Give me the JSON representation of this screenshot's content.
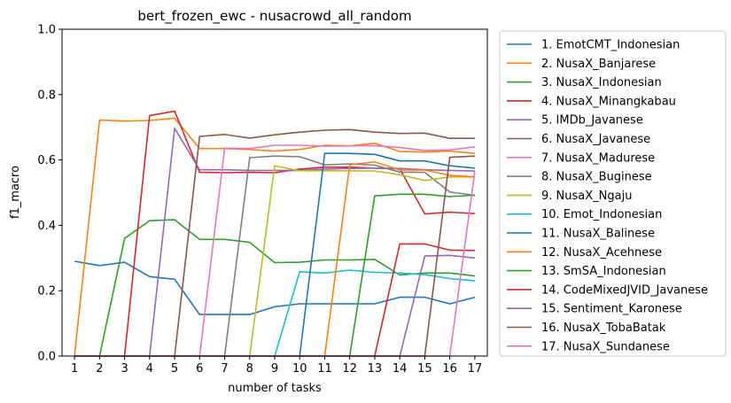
{
  "chart_data": {
    "type": "line",
    "title": "bert_frozen_ewc - nusacrowd_all_random",
    "xlabel": "number of tasks",
    "ylabel": "f1_macro",
    "ylim": [
      0.0,
      1.0
    ],
    "yticks": [
      "0.0",
      "0.2",
      "0.4",
      "0.6",
      "0.8",
      "1.0"
    ],
    "x": [
      1,
      2,
      3,
      4,
      5,
      6,
      7,
      8,
      9,
      10,
      11,
      12,
      13,
      14,
      15,
      16,
      17
    ],
    "grid": false,
    "legend_position": "outside-right",
    "series": [
      {
        "name": "1. EmotCMT_Indonesian",
        "color": "#1f77b4",
        "values": [
          0.29,
          0.277,
          0.287,
          0.243,
          0.235,
          0.127,
          0.127,
          0.127,
          0.151,
          0.16,
          0.16,
          0.16,
          0.16,
          0.18,
          0.18,
          0.16,
          0.18
        ]
      },
      {
        "name": "2. NusaX_Banjarese",
        "color": "#ff7f0e",
        "values": [
          0.0,
          0.722,
          0.719,
          0.721,
          0.728,
          0.635,
          0.635,
          0.632,
          0.627,
          0.632,
          0.645,
          0.643,
          0.651,
          0.626,
          0.624,
          0.627,
          0.62
        ]
      },
      {
        "name": "3. NusaX_Indonesian",
        "color": "#2ca02c",
        "values": [
          0.0,
          0.0,
          0.36,
          0.414,
          0.417,
          0.357,
          0.357,
          0.348,
          0.286,
          0.287,
          0.294,
          0.294,
          0.296,
          0.248,
          0.254,
          0.254,
          0.245
        ]
      },
      {
        "name": "4. NusaX_Minangkabau",
        "color": "#d62728",
        "values": [
          0.0,
          0.0,
          0.0,
          0.736,
          0.749,
          0.562,
          0.561,
          0.562,
          0.561,
          0.572,
          0.578,
          0.578,
          0.575,
          0.573,
          0.435,
          0.44,
          0.436
        ]
      },
      {
        "name": "5. IMDb_Javanese",
        "color": "#9467bd",
        "values": [
          0.0,
          0.0,
          0.0,
          0.0,
          0.697,
          0.57,
          0.57,
          0.568,
          0.568,
          0.568,
          0.572,
          0.574,
          0.575,
          0.574,
          0.57,
          0.568,
          0.566
        ]
      },
      {
        "name": "6. NusaX_Javanese",
        "color": "#8c564b",
        "values": [
          0.0,
          0.0,
          0.0,
          0.0,
          0.0,
          0.672,
          0.678,
          0.667,
          0.677,
          0.685,
          0.691,
          0.693,
          0.685,
          0.681,
          0.682,
          0.666,
          0.666
        ]
      },
      {
        "name": "7. NusaX_Madurese",
        "color": "#e377c2",
        "values": [
          0.0,
          0.0,
          0.0,
          0.0,
          0.0,
          0.0,
          0.636,
          0.635,
          0.645,
          0.645,
          0.642,
          0.643,
          0.644,
          0.638,
          0.629,
          0.631,
          0.64
        ]
      },
      {
        "name": "8. NusaX_Buginese",
        "color": "#7f7f7f",
        "values": [
          0.0,
          0.0,
          0.0,
          0.0,
          0.0,
          0.0,
          0.0,
          0.607,
          0.612,
          0.61,
          0.585,
          0.588,
          0.584,
          0.563,
          0.562,
          0.502,
          0.492
        ]
      },
      {
        "name": "9. NusaX_Ngaju",
        "color": "#bcbd22",
        "values": [
          0.0,
          0.0,
          0.0,
          0.0,
          0.0,
          0.0,
          0.0,
          0.0,
          0.582,
          0.567,
          0.567,
          0.567,
          0.566,
          0.555,
          0.537,
          0.548,
          0.548
        ]
      },
      {
        "name": "10. Emot_Indonesian",
        "color": "#17becf",
        "values": [
          0.0,
          0.0,
          0.0,
          0.0,
          0.0,
          0.0,
          0.0,
          0.0,
          0.0,
          0.258,
          0.254,
          0.263,
          0.256,
          0.254,
          0.249,
          0.237,
          0.23
        ]
      },
      {
        "name": "11. NusaX_Balinese",
        "color": "#1f77b4",
        "values": [
          0.0,
          0.0,
          0.0,
          0.0,
          0.0,
          0.0,
          0.0,
          0.0,
          0.0,
          0.0,
          0.62,
          0.62,
          0.617,
          0.597,
          0.597,
          0.582,
          0.575
        ]
      },
      {
        "name": "12. NusaX_Acehnese",
        "color": "#ff7f0e",
        "values": [
          0.0,
          0.0,
          0.0,
          0.0,
          0.0,
          0.0,
          0.0,
          0.0,
          0.0,
          0.0,
          0.0,
          0.585,
          0.594,
          0.569,
          0.569,
          0.553,
          0.548
        ]
      },
      {
        "name": "13. SmSA_Indonesian",
        "color": "#2ca02c",
        "values": [
          0.0,
          0.0,
          0.0,
          0.0,
          0.0,
          0.0,
          0.0,
          0.0,
          0.0,
          0.0,
          0.0,
          0.0,
          0.49,
          0.495,
          0.495,
          0.488,
          0.492
        ]
      },
      {
        "name": "14. CodeMixedJVID_Javanese",
        "color": "#d62728",
        "values": [
          0.0,
          0.0,
          0.0,
          0.0,
          0.0,
          0.0,
          0.0,
          0.0,
          0.0,
          0.0,
          0.0,
          0.0,
          0.0,
          0.343,
          0.343,
          0.324,
          0.323
        ]
      },
      {
        "name": "15. Sentiment_Karonese",
        "color": "#9467bd",
        "values": [
          0.0,
          0.0,
          0.0,
          0.0,
          0.0,
          0.0,
          0.0,
          0.0,
          0.0,
          0.0,
          0.0,
          0.0,
          0.0,
          0.0,
          0.306,
          0.308,
          0.3
        ]
      },
      {
        "name": "16. NusaX_TobaBatak",
        "color": "#8c564b",
        "values": [
          0.0,
          0.0,
          0.0,
          0.0,
          0.0,
          0.0,
          0.0,
          0.0,
          0.0,
          0.0,
          0.0,
          0.0,
          0.0,
          0.0,
          0.0,
          0.608,
          0.612
        ]
      },
      {
        "name": "17. NusaX_Sundanese",
        "color": "#e377c2",
        "values": [
          0.0,
          0.0,
          0.0,
          0.0,
          0.0,
          0.0,
          0.0,
          0.0,
          0.0,
          0.0,
          0.0,
          0.0,
          0.0,
          0.0,
          0.0,
          0.0,
          0.565
        ]
      }
    ]
  }
}
